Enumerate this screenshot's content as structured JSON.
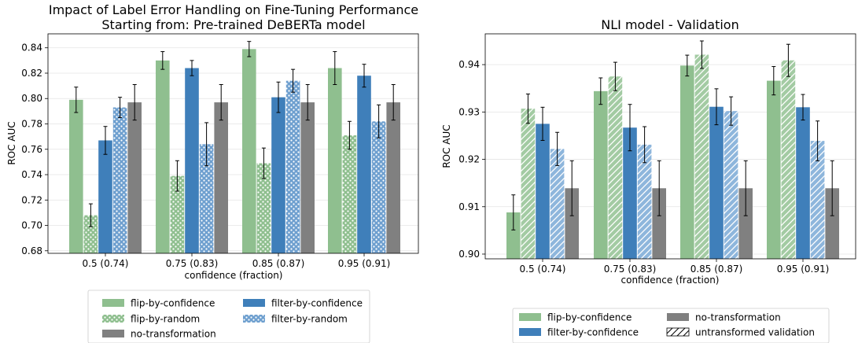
{
  "chart_data": [
    {
      "type": "bar",
      "title": "Impact of Label Error Handling on Fine-Tuning Performance\nStarting from: Pre-trained DeBERTa model",
      "xlabel": "confidence (fraction)",
      "ylabel": "ROC AUC",
      "ylim": [
        0.678,
        0.851
      ],
      "yticks": [
        "0.68",
        "0.70",
        "0.72",
        "0.74",
        "0.76",
        "0.78",
        "0.80",
        "0.82",
        "0.84"
      ],
      "categories": [
        "0.5 (0.74)",
        "0.75 (0.83)",
        "0.85 (0.87)",
        "0.95 (0.91)"
      ],
      "grid": true,
      "legend_position": "below",
      "series": [
        {
          "name": "flip-by-confidence",
          "color": "#8fbf8f",
          "hatch": "none",
          "values": [
            0.799,
            0.83,
            0.839,
            0.824
          ],
          "err": [
            0.01,
            0.007,
            0.006,
            0.013
          ]
        },
        {
          "name": "flip-by-random",
          "color": "#8fbf8f",
          "hatch": "dots",
          "values": [
            0.708,
            0.739,
            0.749,
            0.771
          ],
          "err": [
            0.009,
            0.012,
            0.012,
            0.011
          ]
        },
        {
          "name": "filter-by-confidence",
          "color": "#3f7fba",
          "hatch": "none",
          "values": [
            0.767,
            0.824,
            0.801,
            0.818
          ],
          "err": [
            0.011,
            0.006,
            0.012,
            0.009
          ]
        },
        {
          "name": "filter-by-random",
          "color": "#6e9fcf",
          "hatch": "dots",
          "values": [
            0.793,
            0.764,
            0.814,
            0.782
          ],
          "err": [
            0.008,
            0.017,
            0.009,
            0.013
          ]
        },
        {
          "name": "no-transformation",
          "color": "#808080",
          "hatch": "none",
          "values": [
            0.797,
            0.797,
            0.797,
            0.797
          ],
          "err": [
            0.014,
            0.014,
            0.014,
            0.014
          ]
        }
      ],
      "legend": [
        [
          "flip-by-confidence",
          "filter-by-confidence"
        ],
        [
          "flip-by-random",
          "filter-by-random"
        ],
        [
          "no-transformation"
        ]
      ]
    },
    {
      "type": "bar",
      "title": "NLI model - Validation",
      "xlabel": "confidence (fraction)",
      "ylabel": "ROC AUC",
      "ylim": [
        0.899,
        0.9465
      ],
      "yticks": [
        "0.90",
        "0.91",
        "0.92",
        "0.93",
        "0.94"
      ],
      "categories": [
        "0.5 (0.74)",
        "0.75 (0.83)",
        "0.85 (0.87)",
        "0.95 (0.91)"
      ],
      "grid": true,
      "legend_position": "below",
      "series": [
        {
          "name": "flip-by-confidence",
          "color": "#8fbf8f",
          "hatch": "none",
          "values": [
            0.9088,
            0.9344,
            0.9398,
            0.9366
          ],
          "err": [
            0.0037,
            0.0028,
            0.0022,
            0.003
          ]
        },
        {
          "name": "flip-by-confidence (untransformed validation)",
          "color": "#8fbf8f",
          "hatch": "diag",
          "values": [
            0.9307,
            0.9375,
            0.9421,
            0.9409
          ],
          "err": [
            0.0031,
            0.003,
            0.0029,
            0.0034
          ]
        },
        {
          "name": "filter-by-confidence",
          "color": "#3f7fba",
          "hatch": "none",
          "values": [
            0.9275,
            0.9267,
            0.9311,
            0.931
          ],
          "err": [
            0.0035,
            0.0049,
            0.0038,
            0.0027
          ]
        },
        {
          "name": "filter-by-confidence (untransformed validation)",
          "color": "#6e9fcf",
          "hatch": "diag",
          "values": [
            0.9222,
            0.9231,
            0.9302,
            0.9239
          ],
          "err": [
            0.0035,
            0.0038,
            0.003,
            0.0042
          ]
        },
        {
          "name": "no-transformation",
          "color": "#808080",
          "hatch": "none",
          "values": [
            0.9139,
            0.9139,
            0.9139,
            0.9139
          ],
          "err": [
            0.0058,
            0.0058,
            0.0058,
            0.0058
          ]
        }
      ],
      "legend": [
        [
          "flip-by-confidence",
          "no-transformation"
        ],
        [
          "filter-by-confidence",
          "untransformed validation"
        ]
      ]
    }
  ]
}
